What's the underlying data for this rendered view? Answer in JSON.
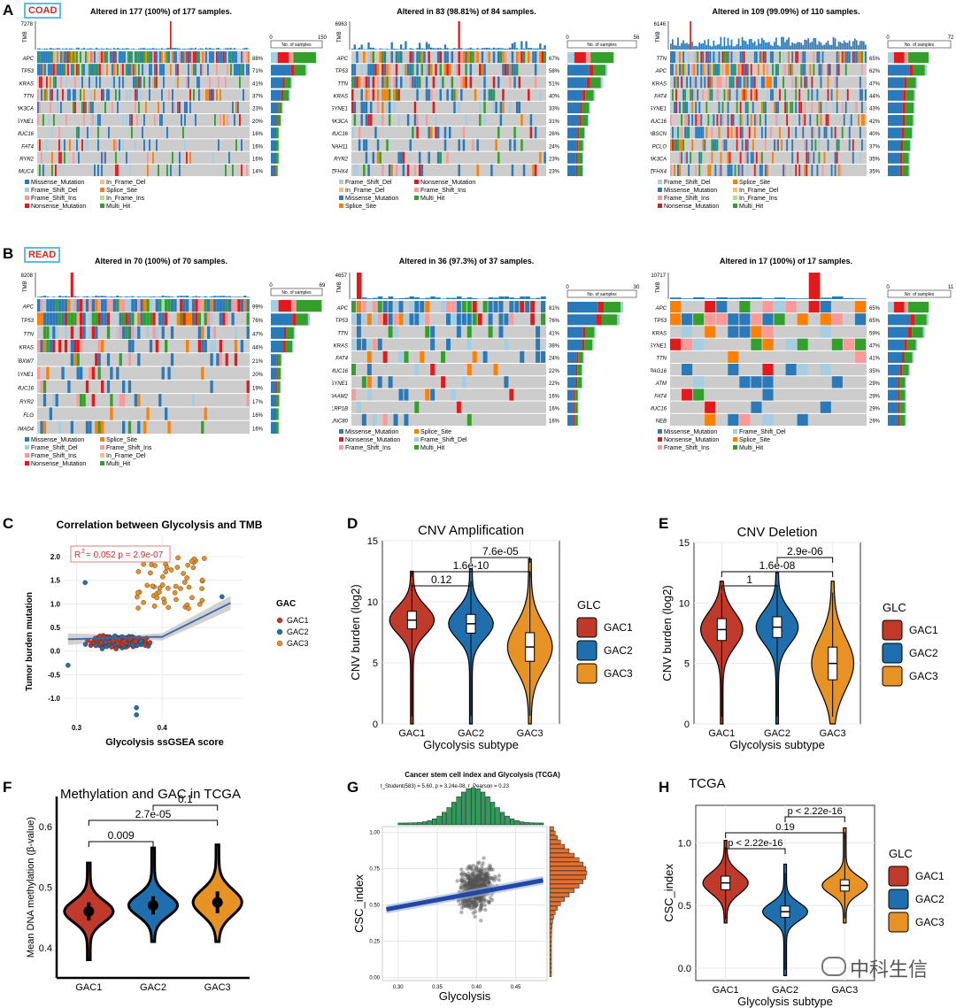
{
  "panel_letters": {
    "A": "A",
    "B": "B",
    "C": "C",
    "D": "D",
    "E": "E",
    "F": "F",
    "G": "G",
    "H": "H"
  },
  "colors": {
    "missense": "#2a7ab9",
    "nonsense": "#e31a1c",
    "frame_shift_del": "#a6cee3",
    "frame_shift_ins": "#fb9a99",
    "in_frame_del": "#fdbf6f",
    "in_frame_ins": "#b2df8a",
    "splice": "#ff7f00",
    "multi": "#33a02c",
    "gac1": "#c03a2b",
    "gac2": "#1f6fae",
    "gac3": "#e69224",
    "grey": "#cccccc"
  },
  "oncoplots": [
    {
      "id": "coad1",
      "tag": "COAD",
      "title": "Altered in 177 (100%) of 177 samples.",
      "tmb_max": "7278",
      "bar_max": "150",
      "genes": [
        "APC",
        "TP53",
        "KRAS",
        "TTN",
        "PIK3CA",
        "SYNE1",
        "MUC16",
        "FAT4",
        "RYR2",
        "MUC4"
      ],
      "pcts": [
        "88%",
        "71%",
        "41%",
        "37%",
        "23%",
        "20%",
        "16%",
        "16%",
        "16%",
        "14%"
      ],
      "legend": [
        "Missense_Mutation",
        "In_Frame_Del",
        "Frame_Shift_Del",
        "Splice_Site",
        "Frame_Shift_Ins",
        "In_Frame_Ins",
        "Nonsense_Mutation",
        "Multi_Hit"
      ]
    },
    {
      "id": "coad2",
      "tag": "",
      "title": "Altered in 83 (98.81%) of 84 samples.",
      "tmb_max": "6963",
      "bar_max": "56",
      "genes": [
        "APC",
        "TP53",
        "TTN",
        "KRAS",
        "SYNE1",
        "PIK3CA",
        "MUC16",
        "DNAH11",
        "RYR2",
        "ZFHX4"
      ],
      "pcts": [
        "67%",
        "58%",
        "51%",
        "40%",
        "33%",
        "31%",
        "26%",
        "24%",
        "23%",
        "23%"
      ],
      "legend": [
        "Frame_Shift_Del",
        "Nonsense_Mutation",
        "In_Frame_Del",
        "Frame_Shift_Ins",
        "Missense_Mutation",
        "Multi_Hit",
        "Splice_Site"
      ]
    },
    {
      "id": "coad3",
      "tag": "",
      "title": "Altered in 109 (99.09%) of 110 samples.",
      "tmb_max": "6146",
      "bar_max": "72",
      "genes": [
        "TTN",
        "APC",
        "KRAS",
        "FAT4",
        "SYNE1",
        "MUC16",
        "OBSCN",
        "PCLO",
        "PIK3CA",
        "ZFHX4"
      ],
      "pcts": [
        "65%",
        "62%",
        "47%",
        "44%",
        "43%",
        "42%",
        "40%",
        "37%",
        "35%",
        "35%"
      ],
      "legend": [
        "Frame_Shift_Del",
        "Splice_Site",
        "Missense_Mutation",
        "In_Frame_Del",
        "Frame_Shift_Ins",
        "In_Frame_Ins",
        "Nonsense_Mutation",
        "Multi_Hit"
      ]
    },
    {
      "id": "read1",
      "tag": "READ",
      "title": "Altered in 70 (100%) of 70 samples.",
      "tmb_max": "8208",
      "bar_max": "69",
      "genes": [
        "APC",
        "TP53",
        "TTN",
        "KRAS",
        "FBXW7",
        "SYNE1",
        "MUC16",
        "RYR2",
        "FLG",
        "SMAD4"
      ],
      "pcts": [
        "99%",
        "76%",
        "47%",
        "44%",
        "21%",
        "20%",
        "19%",
        "17%",
        "16%",
        "16%"
      ],
      "legend": [
        "Missense_Mutation",
        "Splice_Site",
        "Frame_Shift_Del",
        "Frame_Shift_Ins",
        "Frame_Shift_Ins",
        "In_Frame_Del",
        "Nonsense_Mutation",
        "Multi_Hit"
      ]
    },
    {
      "id": "read2",
      "tag": "",
      "title": "Altered in 36 (97.3%) of 37 samples.",
      "tmb_max": "4657",
      "bar_max": "30",
      "genes": [
        "APC",
        "TP53",
        "TTN",
        "KRAS",
        "FAT4",
        "MUC16",
        "SYNE1",
        "DAAM2",
        "LRP1B",
        "UNC80"
      ],
      "pcts": [
        "81%",
        "76%",
        "41%",
        "38%",
        "24%",
        "22%",
        "22%",
        "16%",
        "16%",
        "16%"
      ],
      "legend": [
        "Missense_Mutation",
        "Splice_Site",
        "Nonsense_Mutation",
        "Frame_Shift_Del",
        "Frame_Shift_Ins",
        "Multi_Hit"
      ]
    },
    {
      "id": "read3",
      "tag": "",
      "title": "Altered in 17 (100%) of 17 samples.",
      "tmb_max": "10717",
      "bar_max": "11",
      "genes": [
        "APC",
        "TP53",
        "KRAS",
        "SYNE1",
        "TTN",
        "SPAG16",
        "ATM",
        "FAT4",
        "MUC16",
        "NEB"
      ],
      "pcts": [
        "65%",
        "65%",
        "59%",
        "47%",
        "41%",
        "35%",
        "29%",
        "29%",
        "29%",
        "29%"
      ],
      "legend": [
        "Missense_Mutation",
        "Frame_Shift_Del",
        "Nonsense_Mutation",
        "Splice_Site",
        "Frame_Shift_Ins",
        "Multi_Hit"
      ]
    }
  ],
  "oncoplot_common": {
    "tmb_label": "TMB",
    "bar_label": "No. of samples",
    "bar_zero": "0"
  },
  "chart_data": [
    {
      "panel": "C",
      "type": "scatter",
      "title": "Correlation between Glycolysis and TMB",
      "stat": "R² = 0.052 p = 2.9e-07",
      "stat_r": "R",
      "stat_rest": " = 0.052  p = 2.9e-07",
      "xlabel": "Glycolysis ssGSEA score",
      "ylabel": "Tumor burden mutation",
      "xticks": [
        "0.3",
        "0.4"
      ],
      "yticks": [
        "2.0",
        "1.5",
        "1.0",
        "0.5",
        "0.0",
        "-0.5",
        "-1.0"
      ],
      "legend_title": "GAC",
      "groups": [
        "GAC1",
        "GAC2",
        "GAC3"
      ]
    },
    {
      "panel": "D",
      "type": "violin",
      "title": "CNV Amplification",
      "xlabel": "Glycolysis subtype",
      "ylabel": "CNV burden (log2)",
      "categories": [
        "GAC1",
        "GAC2",
        "GAC3"
      ],
      "yticks": [
        "0",
        "5",
        "10",
        "15"
      ],
      "ylim": [
        0,
        15
      ],
      "medians": [
        8.5,
        8.2,
        6.3
      ],
      "pvalues": [
        "0.12",
        "1.6e-10",
        "7.6e-05"
      ],
      "legend_title": "GLC"
    },
    {
      "panel": "E",
      "type": "violin",
      "title": "CNV Deletion",
      "xlabel": "Glycolysis subtype",
      "ylabel": "CNV burden (log2)",
      "categories": [
        "GAC1",
        "GAC2",
        "GAC3"
      ],
      "yticks": [
        "0",
        "5",
        "10",
        "15"
      ],
      "ylim": [
        0,
        15
      ],
      "medians": [
        7.8,
        8,
        5
      ],
      "pvalues": [
        "1",
        "1.6e-08",
        "2.9e-06"
      ],
      "legend_title": "GLC"
    },
    {
      "panel": "F",
      "type": "violin",
      "title": "Methylation and GAC in TCGA",
      "xlabel": "",
      "ylabel": "Mean DNA methylation (β-value)",
      "categories": [
        "GAC1",
        "GAC2",
        "GAC3"
      ],
      "yticks": [
        "0.4",
        "0.5",
        "0.6"
      ],
      "ylim": [
        0.35,
        0.65
      ],
      "medians": [
        0.46,
        0.47,
        0.475
      ],
      "pvalues": [
        "0.009",
        "2.7e-05",
        "0.1"
      ]
    },
    {
      "panel": "G",
      "type": "scatter",
      "title": "Cancer stem cell index and Glycolysis (TCGA)",
      "subtitle": "t_Student(583) = 5.60, p = 3.24e-08, r_Pearson = 0.23",
      "xlabel": "Glycolysis",
      "ylabel": "CSC_index",
      "xticks": [
        "0.30",
        "0.35",
        "0.40",
        "0.45"
      ],
      "yticks": [
        "0.00",
        "0.25",
        "0.50",
        "0.75",
        "1.00"
      ]
    },
    {
      "panel": "H",
      "type": "violin",
      "title": "TCGA",
      "xlabel": "Glycolysis subtype",
      "ylabel": "CSC_index",
      "categories": [
        "GAC1",
        "GAC2",
        "GAC3"
      ],
      "yticks": [
        "0.0",
        "0.5",
        "1.0"
      ],
      "ylim": [
        -0.1,
        1.3
      ],
      "medians": [
        0.68,
        0.45,
        0.66
      ],
      "pvalues": [
        "p < 2.22e-16",
        "0.19",
        "p < 2.22e-16"
      ],
      "legend_title": "GLC"
    }
  ],
  "watermark": "中科生信"
}
